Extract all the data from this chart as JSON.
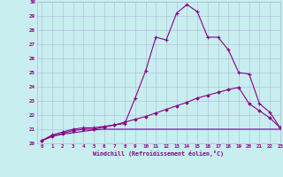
{
  "xlabel": "Windchill (Refroidissement éolien,°C)",
  "xlim": [
    -0.5,
    23
  ],
  "ylim": [
    20,
    30
  ],
  "xticks": [
    0,
    1,
    2,
    3,
    4,
    5,
    6,
    7,
    8,
    9,
    10,
    11,
    12,
    13,
    14,
    15,
    16,
    17,
    18,
    19,
    20,
    21,
    22,
    23
  ],
  "yticks": [
    20,
    21,
    22,
    23,
    24,
    25,
    26,
    27,
    28,
    29,
    30
  ],
  "background_color": "#c8eef0",
  "grid_color": "#b0b8d8",
  "line_color": "#880088",
  "line1_y": [
    20.2,
    20.6,
    20.8,
    21.0,
    21.1,
    21.1,
    21.2,
    21.3,
    21.4,
    23.2,
    25.1,
    27.5,
    27.3,
    29.2,
    29.8,
    29.3,
    27.5,
    27.5,
    26.6,
    25.0,
    24.9,
    22.8,
    22.2,
    21.1
  ],
  "line2_y": [
    20.2,
    20.5,
    20.7,
    20.9,
    21.0,
    21.0,
    21.15,
    21.3,
    21.5,
    21.7,
    21.9,
    22.15,
    22.4,
    22.65,
    22.9,
    23.2,
    23.4,
    23.6,
    23.8,
    23.95,
    22.8,
    22.3,
    21.8,
    21.1
  ],
  "line3_y": [
    20.2,
    20.5,
    20.65,
    20.75,
    20.85,
    20.95,
    21.0,
    21.0,
    21.0,
    21.0,
    21.0,
    21.0,
    21.0,
    21.0,
    21.0,
    21.0,
    21.0,
    21.0,
    21.0,
    21.0,
    21.0,
    21.0,
    21.0,
    21.0
  ]
}
